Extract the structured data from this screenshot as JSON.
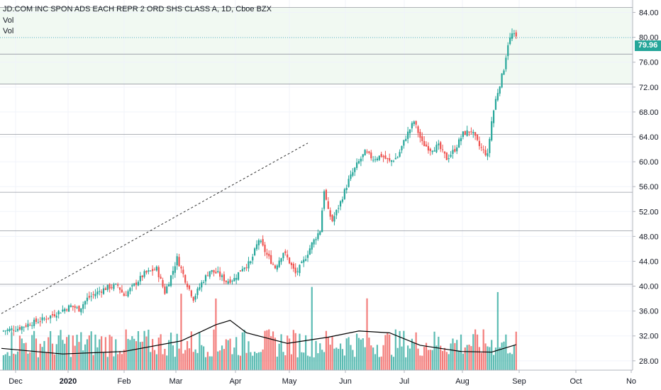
{
  "header": {
    "title": "JD.COM INC SPON ADS EACH REPR 2 ORD SHS CLASS A, 1D, Cboe BZX",
    "legend": [
      "Vol",
      "Vol"
    ]
  },
  "price_tag": "79.96",
  "colors": {
    "up": "#26a69a",
    "down": "#ef5350",
    "ma": "#000000",
    "zone": "#e8f5e9",
    "trend": "#333333"
  },
  "chart_data": {
    "type": "candlestick",
    "title": "JD.COM INC SPON ADS EACH REPR 2 ORD SHS CLASS A, 1D, Cboe BZX",
    "x_ticks": [
      "Dec",
      "2020",
      "Feb",
      "Mar",
      "Apr",
      "May",
      "Jun",
      "Jul",
      "Aug",
      "Sep",
      "Oct",
      "No"
    ],
    "y_ticks": [
      "28.00",
      "32.00",
      "36.00",
      "40.00",
      "44.00",
      "48.00",
      "52.00",
      "56.00",
      "60.00",
      "64.00",
      "68.00",
      "72.00",
      "76.00",
      "80.00",
      "84.00"
    ],
    "ylim": [
      26.5,
      86
    ],
    "last_price": 79.96,
    "horizontal_levels": [
      40.3,
      48.9,
      55.1,
      64.4,
      72.5,
      77.3,
      84.8
    ],
    "zone": [
      72.5,
      84.8
    ],
    "close_path": [
      [
        0,
        32.8
      ],
      [
        8,
        33.2
      ],
      [
        14,
        34.0
      ],
      [
        20,
        34.6
      ],
      [
        26,
        35.5
      ],
      [
        30,
        36.2
      ],
      [
        34,
        36.8
      ],
      [
        38,
        36.3
      ],
      [
        42,
        38.0
      ],
      [
        48,
        39.2
      ],
      [
        52,
        39.8
      ],
      [
        57,
        40.1
      ],
      [
        60,
        38.5
      ],
      [
        64,
        39.8
      ],
      [
        70,
        42.0
      ],
      [
        76,
        42.8
      ],
      [
        80,
        39.0
      ],
      [
        84,
        42.5
      ],
      [
        86,
        44.5
      ],
      [
        90,
        41.0
      ],
      [
        94,
        38.0
      ],
      [
        98,
        40.5
      ],
      [
        102,
        42.5
      ],
      [
        106,
        42.0
      ],
      [
        110,
        40.8
      ],
      [
        114,
        41.2
      ],
      [
        118,
        43.0
      ],
      [
        122,
        43.8
      ],
      [
        126,
        47.5
      ],
      [
        130,
        45.0
      ],
      [
        134,
        43.0
      ],
      [
        138,
        45.5
      ],
      [
        140,
        44.5
      ],
      [
        144,
        42.0
      ],
      [
        148,
        44.0
      ],
      [
        152,
        46.8
      ],
      [
        156,
        49.0
      ],
      [
        158,
        55.5
      ],
      [
        160,
        52.0
      ],
      [
        162,
        50.5
      ],
      [
        166,
        53.5
      ],
      [
        170,
        57.0
      ],
      [
        174,
        59.5
      ],
      [
        178,
        61.5
      ],
      [
        182,
        60.5
      ],
      [
        186,
        61.0
      ],
      [
        190,
        60.0
      ],
      [
        194,
        60.8
      ],
      [
        198,
        64.0
      ],
      [
        202,
        66.5
      ],
      [
        206,
        63.0
      ],
      [
        210,
        62.0
      ],
      [
        214,
        62.5
      ],
      [
        218,
        60.5
      ],
      [
        222,
        62.0
      ],
      [
        226,
        64.5
      ],
      [
        230,
        65.0
      ],
      [
        234,
        62.5
      ],
      [
        238,
        61.0
      ],
      [
        240,
        66.5
      ],
      [
        242,
        70.0
      ],
      [
        244,
        72.5
      ],
      [
        246,
        75.0
      ],
      [
        248,
        79.0
      ],
      [
        250,
        80.5
      ],
      [
        252,
        79.96
      ]
    ],
    "volume": {
      "note": "green = up day, red = down day",
      "ma_path": [
        [
          0,
          30.0
        ],
        [
          30,
          29.1
        ],
        [
          60,
          29.5
        ],
        [
          88,
          31.2
        ],
        [
          105,
          33.8
        ],
        [
          112,
          34.5
        ],
        [
          120,
          32.5
        ],
        [
          140,
          30.8
        ],
        [
          160,
          31.8
        ],
        [
          175,
          32.8
        ],
        [
          190,
          32.5
        ],
        [
          205,
          30.5
        ],
        [
          225,
          29.5
        ],
        [
          240,
          29.4
        ],
        [
          252,
          30.6
        ]
      ]
    },
    "trendline": [
      [
        0,
        35.6
      ],
      [
        150,
        63.0
      ]
    ]
  }
}
